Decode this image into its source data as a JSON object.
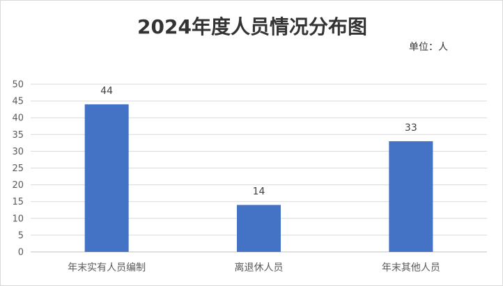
{
  "chart_data": {
    "type": "bar",
    "title": "2024年度人员情况分布图",
    "unit_label": "单位：人",
    "categories": [
      "年末实有人员编制",
      "离退休人员",
      "年末其他人员"
    ],
    "values": [
      44,
      14,
      33
    ],
    "ylim": [
      0,
      50
    ],
    "y_ticks": [
      "0",
      "5",
      "10",
      "15",
      "20",
      "25",
      "30",
      "35",
      "40",
      "45",
      "50"
    ],
    "grid": true,
    "legend": "none",
    "bar_color": "#4472c4"
  }
}
